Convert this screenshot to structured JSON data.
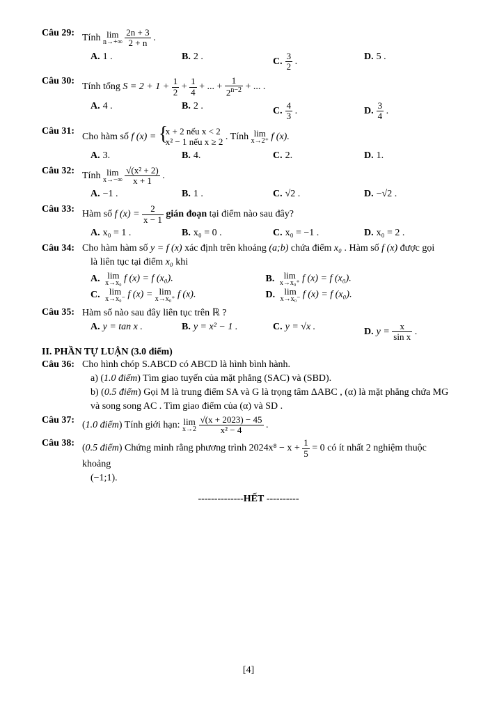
{
  "questions": {
    "q29": {
      "num": "Câu 29:",
      "prompt_pre": "Tính ",
      "lim_top": "lim",
      "lim_bot": "n→+∞",
      "frac_num": "2n + 3",
      "frac_den": "2 + n",
      "optA": "1 .",
      "optB": "2 .",
      "optC_num": "3",
      "optC_den": "2",
      "optD": "5 ."
    },
    "q30": {
      "num": "Câu 30:",
      "prompt": "Tính tổng ",
      "expr_pre": "S = 2 + 1 + ",
      "f1n": "1",
      "f1d": "2",
      "f2n": "1",
      "f2d": "4",
      "expr_mid": " + ... + ",
      "f3n": "1",
      "f3d": "2",
      "f3d_sup": "n−2",
      "expr_end": " + ... .",
      "optA": "4 .",
      "optB": "2 .",
      "optC_num": "4",
      "optC_den": "3",
      "optD_num": "3",
      "optD_den": "4"
    },
    "q31": {
      "num": "Câu 31:",
      "prompt": "Cho hàm số ",
      "fx": "f (x) = ",
      "line1": "x + 2 nếu x < 2",
      "line2": "x² − 1 nếu x ≥ 2",
      "tail_pre": ". Tính ",
      "lim_top": "lim",
      "lim_bot": "x→2⁺",
      "tail_post": " f (x).",
      "optA": "3.",
      "optB": "4.",
      "optC": "2.",
      "optD": "1."
    },
    "q32": {
      "num": "Câu 32:",
      "prompt": "Tính ",
      "lim_top": "lim",
      "lim_bot": "x→−∞",
      "frac_num": "√(x² + 2)",
      "frac_den": "x + 1",
      "optA": "−1 .",
      "optB": "1 .",
      "optC": "√2 .",
      "optD": "−√2 ."
    },
    "q33": {
      "num": "Câu 33:",
      "prompt_pre": "Hàm số ",
      "fx": "f (x) = ",
      "frac_num": "2",
      "frac_den": "x − 1",
      "prompt_post": " gián đoạn",
      "prompt_tail": " tại điểm nào sau đây?",
      "optA": "x₀ = 1 .",
      "optB": "x₀ = 0 .",
      "optC": "x₀ = −1 .",
      "optD": "x₀ = 2 ."
    },
    "q34": {
      "num": "Câu 34:",
      "line1a": "Cho hàm hàm số ",
      "line1b": "y = f (x)",
      "line1c": " xác định trên khoảng ",
      "line1d": "(a;b)",
      "line1e": " chứa điểm ",
      "line1f": "x₀",
      "line1g": ". Hàm số ",
      "line1h": "f (x)",
      "line1i": " được gọi",
      "line2a": "là liên tục tại điểm ",
      "line2b": "x₀",
      "line2c": " khi",
      "optA_lim_bot": "x→x₀",
      "optA_rhs": "f (x) = f (x₀).",
      "optB_lim_bot": "x→x₀⁺",
      "optB_rhs": "f (x) = f (x₀).",
      "optC_l_bot": "x→x₀⁻",
      "optC_r_bot": "x→x₀⁺",
      "optC_mid": "f (x) = ",
      "optC_rhs": " f (x).",
      "optD_lim_bot": "x→x₀⁻",
      "optD_rhs": "f (x) = f (x₀).",
      "lim_word": "lim"
    },
    "q35": {
      "num": "Câu 35:",
      "prompt": "Hàm số nào sau đây liên tục trên ℝ ?",
      "optA": "y = tan x .",
      "optB": "y = x² − 1 .",
      "optC": "y = √x .",
      "optD_pre": "y = ",
      "optD_num": "x",
      "optD_den": "sin x"
    },
    "section2": "II. PHẦN TỰ LUẬN (3.0 điểm)",
    "q36": {
      "num": "Câu 36:",
      "l1": "Cho hình chóp S.ABCD có ABCD là hình bình hành.",
      "l2a": "a) (",
      "l2b": "1.0 điểm",
      "l2c": ") Tìm giao tuyến của mặt phẳng (SAC) và (SBD).",
      "l3a": "b) (",
      "l3b": "0.5 điểm",
      "l3c": ") Gọi M là trung điểm SA và G là trọng tâm ΔABC , (α) là mặt phẳng chứa MG",
      "l4": "và song song AC . Tìm giao điểm của (α) và SD ."
    },
    "q37": {
      "num": "Câu 37:",
      "pre": "(",
      "pts": "1.0 điểm",
      "post": ") Tính giới hạn: ",
      "lim_top": "lim",
      "lim_bot": "x→2",
      "frac_num": "√(x + 2023) − 45",
      "frac_den": "x² − 4"
    },
    "q38": {
      "num": "Câu 38:",
      "pre": "(",
      "pts": "0.5 điểm",
      "post_a": ") Chứng minh rằng phương trình ",
      "eq_pre": "2024x⁸ − x + ",
      "frac_num": "1",
      "frac_den": "5",
      "eq_post": " = 0 có ít nhất 2 nghiệm thuộc khoảng",
      "l2": "(−1;1)."
    },
    "het": "HẾT",
    "page": "[4]"
  }
}
